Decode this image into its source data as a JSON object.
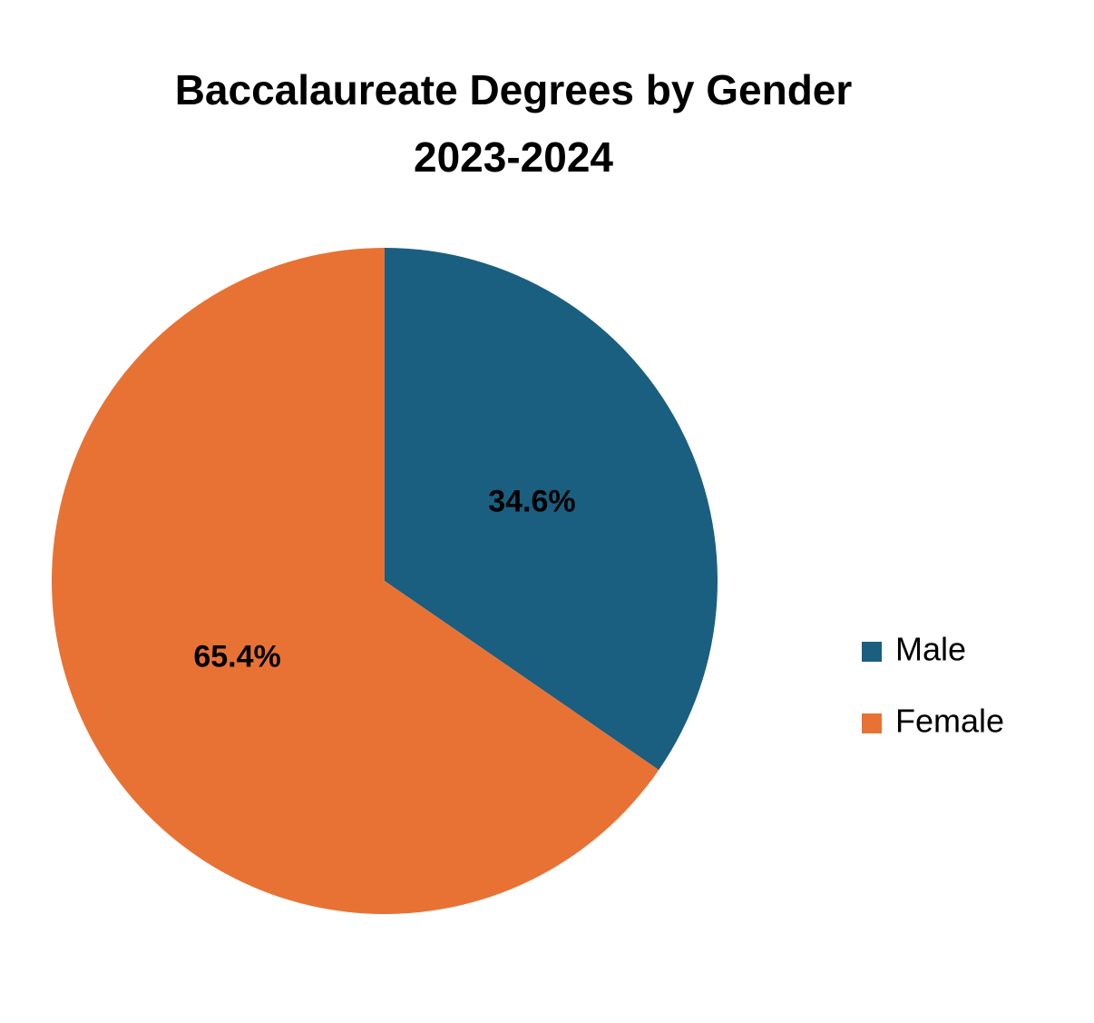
{
  "chart_data": {
    "type": "pie",
    "title": "Baccalaureate Degrees by Gender",
    "subtitle": "2023-2024",
    "series": [
      {
        "name": "Male",
        "color": "#1a5e80",
        "values": [
          34.6
        ],
        "value_labels": [
          "34.6%"
        ]
      },
      {
        "name": "Female",
        "color": "#e87234",
        "values": [
          65.4
        ],
        "value_labels": [
          "65.4%"
        ]
      }
    ],
    "legend": "right"
  }
}
